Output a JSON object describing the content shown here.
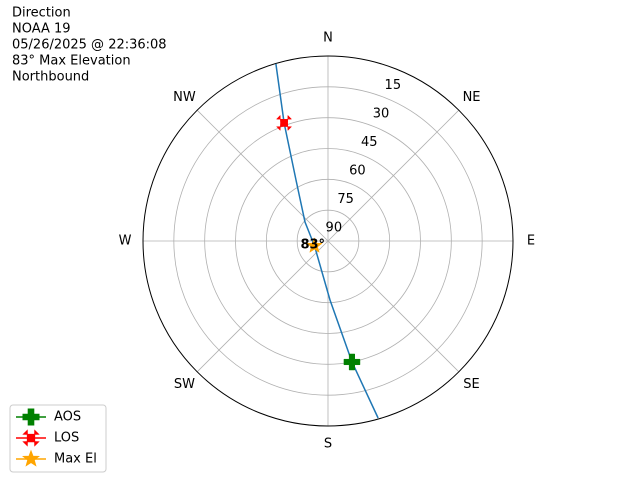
{
  "chart_data": {
    "type": "polar",
    "title_lines": [
      "Direction",
      "NOAA 19",
      "05/26/2025 @ 22:36:08",
      "83° Max Elevation",
      "Northbound"
    ],
    "rlim": [
      90,
      0
    ],
    "rticks": [
      15,
      30,
      45,
      60,
      75,
      90
    ],
    "thetaticks": [
      {
        "value": 0,
        "label": "N"
      },
      {
        "value": 45,
        "label": "NE"
      },
      {
        "value": 90,
        "label": "E"
      },
      {
        "value": 135,
        "label": "SE"
      },
      {
        "value": 180,
        "label": "S"
      },
      {
        "value": 225,
        "label": "SW"
      },
      {
        "value": 270,
        "label": "W"
      },
      {
        "value": 315,
        "label": "NW"
      }
    ],
    "grid": true,
    "track": {
      "color": "#1f77b4",
      "az": [
        164.2,
        168.8,
        178.1,
        250.3,
        309.6,
        332.3,
        339.6,
        343.6
      ],
      "el": [
        0.5,
        30,
        61.3,
        83,
        75.5,
        56.5,
        28.7,
        0.2
      ]
    },
    "markers": [
      {
        "name": "AOS",
        "color": "#008000",
        "shape": "plus",
        "az": 168.8,
        "el": 30
      },
      {
        "name": "LOS",
        "color": "#ff0000",
        "shape": "x",
        "az": 339.6,
        "el": 28.7
      },
      {
        "name": "Max El",
        "color": "#ffa500",
        "shape": "star",
        "az": 250.3,
        "el": 83
      }
    ],
    "annotation": "83°",
    "legend": "lower left"
  }
}
